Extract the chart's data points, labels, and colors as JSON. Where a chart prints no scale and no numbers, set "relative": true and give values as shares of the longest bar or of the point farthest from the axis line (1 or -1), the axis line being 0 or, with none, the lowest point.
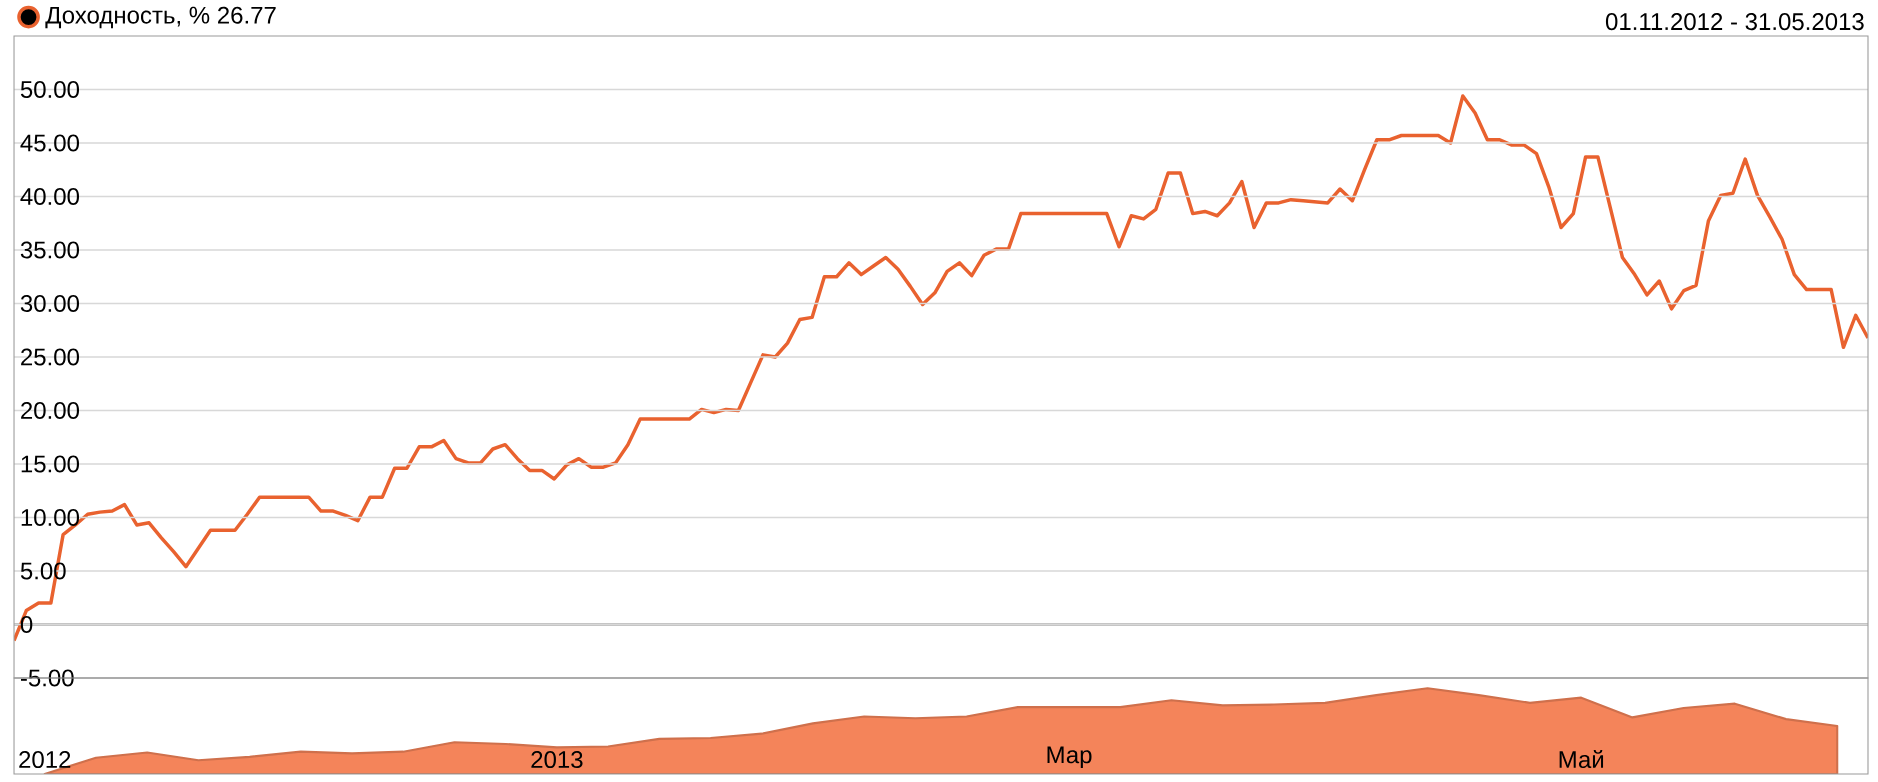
{
  "chart_data": [
    {
      "type": "line",
      "subtitle": "01.11.2012 - 31.05.2013",
      "annotations": [
        "26.77"
      ],
      "legend": "top left",
      "grid": "y",
      "categories": [
        null,
        null,
        null,
        null,
        null,
        null,
        null,
        null,
        null,
        null,
        null,
        null,
        null,
        null,
        null,
        null,
        null,
        null,
        null,
        null,
        null,
        null,
        null,
        null,
        null,
        null,
        null,
        null,
        null,
        null,
        null,
        null,
        null,
        null,
        null,
        null,
        null,
        null,
        null,
        null,
        null,
        null,
        null,
        null,
        null,
        null,
        null,
        null,
        null,
        null,
        null,
        null,
        null,
        null,
        null,
        null,
        null,
        null,
        null,
        null,
        null,
        null,
        null,
        null,
        null,
        null,
        null,
        null,
        null,
        null,
        null,
        null,
        null,
        null,
        null,
        null,
        null,
        null,
        null,
        null,
        null,
        null,
        null,
        null,
        null,
        null,
        null,
        null,
        null,
        null,
        null,
        null,
        null,
        null,
        null,
        null,
        null,
        null,
        null,
        null,
        null,
        null,
        null,
        null,
        null,
        null,
        null,
        null,
        null,
        null,
        null,
        null,
        null,
        null,
        null,
        null,
        null,
        null,
        null,
        null,
        null,
        null,
        null,
        null,
        null,
        null,
        null,
        null,
        null,
        null,
        null,
        null,
        null,
        null,
        null,
        null,
        null,
        null,
        null,
        null,
        null,
        null,
        null,
        null,
        null,
        null,
        null,
        null,
        null,
        null,
        null,
        null
      ],
      "ylim": [
        -5,
        55
      ],
      "yticks": [
        {
          "value": -5,
          "label": "-5.00"
        },
        0,
        {
          "value": 5,
          "label": "5.00"
        },
        {
          "value": 10,
          "label": "10.00"
        },
        {
          "value": 15,
          "label": "15.00"
        },
        {
          "value": 20,
          "label": "20.00"
        },
        {
          "value": 25,
          "label": "25.00"
        },
        {
          "value": 30,
          "label": "30.00"
        },
        {
          "value": 35,
          "label": "35.00"
        },
        {
          "value": 40,
          "label": "40.00"
        },
        {
          "value": 45,
          "label": "45.00"
        },
        {
          "value": 50,
          "label": "50.00"
        }
      ],
      "ref_lines": [
        {
          "axis": "y",
          "value": 0,
          "color": "#808080"
        }
      ],
      "series": [
        {
          "name": "Доходность, %",
          "color": "#e9622f",
          "values": [
            -1.5,
            1.3,
            2.0,
            2.0,
            8.4,
            9.3,
            10.3,
            10.5,
            10.6,
            11.2,
            9.3,
            9.5,
            8.1,
            6.8,
            5.4,
            7.1,
            8.8,
            8.8,
            8.8,
            10.3,
            11.9,
            11.9,
            11.9,
            11.9,
            11.9,
            10.6,
            10.6,
            10.2,
            9.7,
            11.9,
            11.9,
            14.6,
            14.6,
            16.6,
            16.6,
            17.2,
            15.5,
            15.1,
            15.1,
            16.4,
            16.8,
            15.5,
            14.4,
            14.4,
            13.6,
            14.9,
            15.5,
            14.7,
            14.7,
            15.1,
            16.8,
            19.2,
            19.2,
            19.2,
            19.2,
            19.2,
            20.1,
            19.8,
            20.1,
            20.0,
            22.6,
            25.2,
            25.0,
            26.3,
            28.5,
            28.7,
            32.5,
            32.5,
            33.8,
            32.7,
            33.5,
            34.3,
            33.2,
            31.6,
            29.9,
            31.0,
            33.0,
            33.8,
            32.6,
            34.5,
            35.1,
            35.1,
            38.4,
            38.4,
            38.4,
            38.4,
            38.4,
            38.4,
            38.4,
            38.4,
            35.3,
            38.2,
            37.9,
            38.8,
            42.2,
            42.2,
            38.4,
            38.6,
            38.2,
            39.4,
            41.4,
            37.1,
            39.4,
            39.4,
            39.7,
            39.6,
            39.5,
            39.4,
            40.7,
            39.6,
            42.5,
            45.3,
            45.3,
            45.7,
            45.7,
            45.7,
            45.7,
            45.0,
            49.4,
            47.8,
            45.3,
            45.3,
            44.8,
            44.8,
            44.0,
            40.9,
            37.1,
            38.4,
            43.7,
            43.7,
            39.0,
            34.3,
            32.7,
            30.8,
            32.1,
            29.5,
            31.2,
            31.7,
            37.7,
            40.1,
            40.3,
            43.5,
            40.1,
            38.1,
            36.0,
            32.7,
            31.3,
            31.3,
            31.3,
            25.9,
            28.9,
            26.77
          ]
        }
      ]
    },
    {
      "type": "area",
      "relative": true,
      "categories": [
        "2012",
        null,
        null,
        null,
        null,
        null,
        null,
        null,
        null,
        null,
        "2013",
        null,
        null,
        null,
        null,
        null,
        null,
        null,
        null,
        null,
        "Мар",
        null,
        null,
        null,
        null,
        null,
        null,
        null,
        null,
        null,
        "Май",
        null,
        null,
        null,
        null,
        null
      ],
      "series": [
        {
          "color": "#f4845a",
          "values": [
            0,
            0.19,
            0.25,
            0.16,
            0.2,
            0.26,
            0.24,
            0.26,
            0.37,
            0.35,
            0.31,
            0.32,
            0.41,
            0.42,
            0.47,
            0.59,
            0.67,
            0.65,
            0.67,
            0.78,
            0.78,
            0.78,
            0.86,
            0.8,
            0.81,
            0.83,
            0.92,
            1,
            0.92,
            0.83,
            0.89,
            0.66,
            0.77,
            0.82,
            0.64,
            0.56
          ]
        }
      ]
    }
  ]
}
